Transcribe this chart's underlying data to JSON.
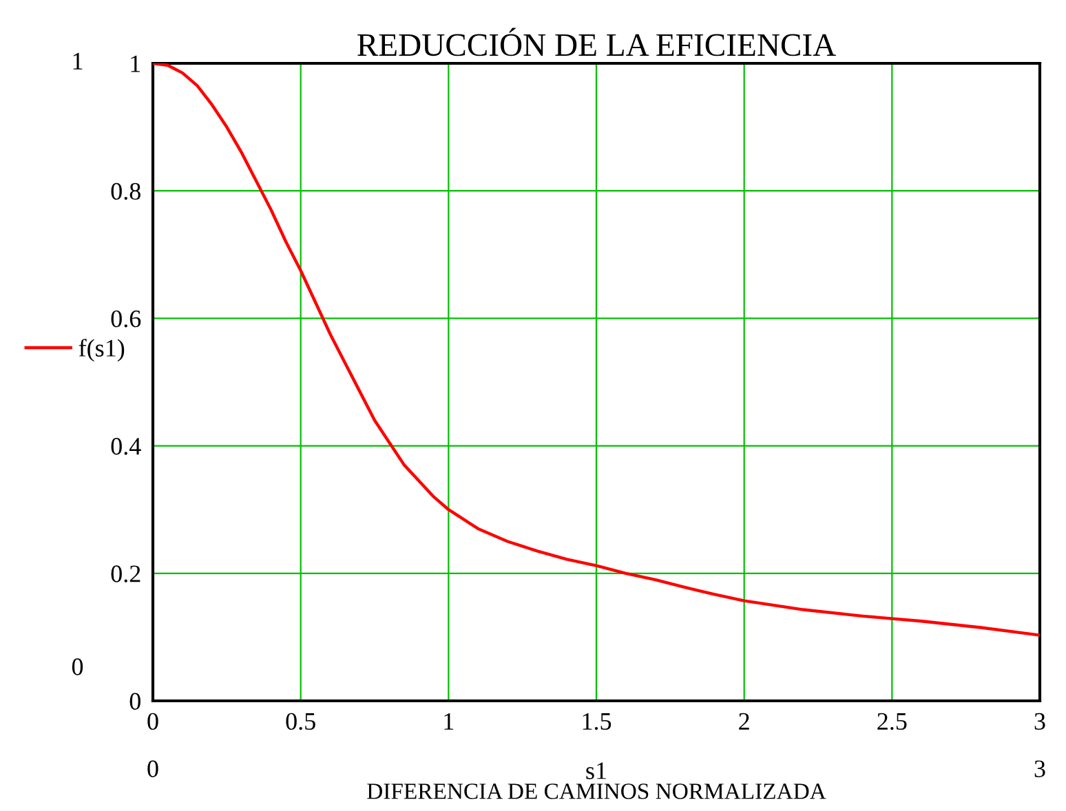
{
  "chart_data": {
    "type": "line",
    "title": "REDUCCIÓN DE LA EFICIENCIA",
    "xlabel": "s1",
    "annotations": [
      "DIFERENCIA DE CAMINOS NORMALIZADA",
      "1",
      "0",
      "0",
      "3"
    ],
    "x": [
      0,
      0.05,
      0.1,
      0.15,
      0.2,
      0.25,
      0.3,
      0.35,
      0.4,
      0.45,
      0.5,
      0.55,
      0.6,
      0.65,
      0.7,
      0.75,
      0.8,
      0.85,
      0.9,
      0.95,
      1.0,
      1.1,
      1.2,
      1.3,
      1.4,
      1.5,
      1.6,
      1.7,
      1.8,
      1.9,
      2.0,
      2.2,
      2.4,
      2.6,
      2.8,
      3.0
    ],
    "series": [
      {
        "name": "f(s1)",
        "color": "#ff0000",
        "values": [
          1.0,
          0.997,
          0.985,
          0.965,
          0.935,
          0.9,
          0.86,
          0.815,
          0.77,
          0.72,
          0.675,
          0.625,
          0.575,
          0.53,
          0.485,
          0.44,
          0.405,
          0.37,
          0.345,
          0.32,
          0.3,
          0.27,
          0.25,
          0.235,
          0.222,
          0.212,
          0.2,
          0.19,
          0.178,
          0.167,
          0.157,
          0.143,
          0.133,
          0.125,
          0.115,
          0.103
        ]
      }
    ],
    "xlim": [
      0,
      3
    ],
    "ylim": [
      0,
      1
    ],
    "xticks": [
      0,
      0.5,
      1,
      1.5,
      2,
      2.5,
      3
    ],
    "yticks": [
      0,
      0.2,
      0.4,
      0.6,
      0.8,
      1
    ],
    "grid": true,
    "legend": "left",
    "line_style": "solid",
    "marker": "none"
  }
}
